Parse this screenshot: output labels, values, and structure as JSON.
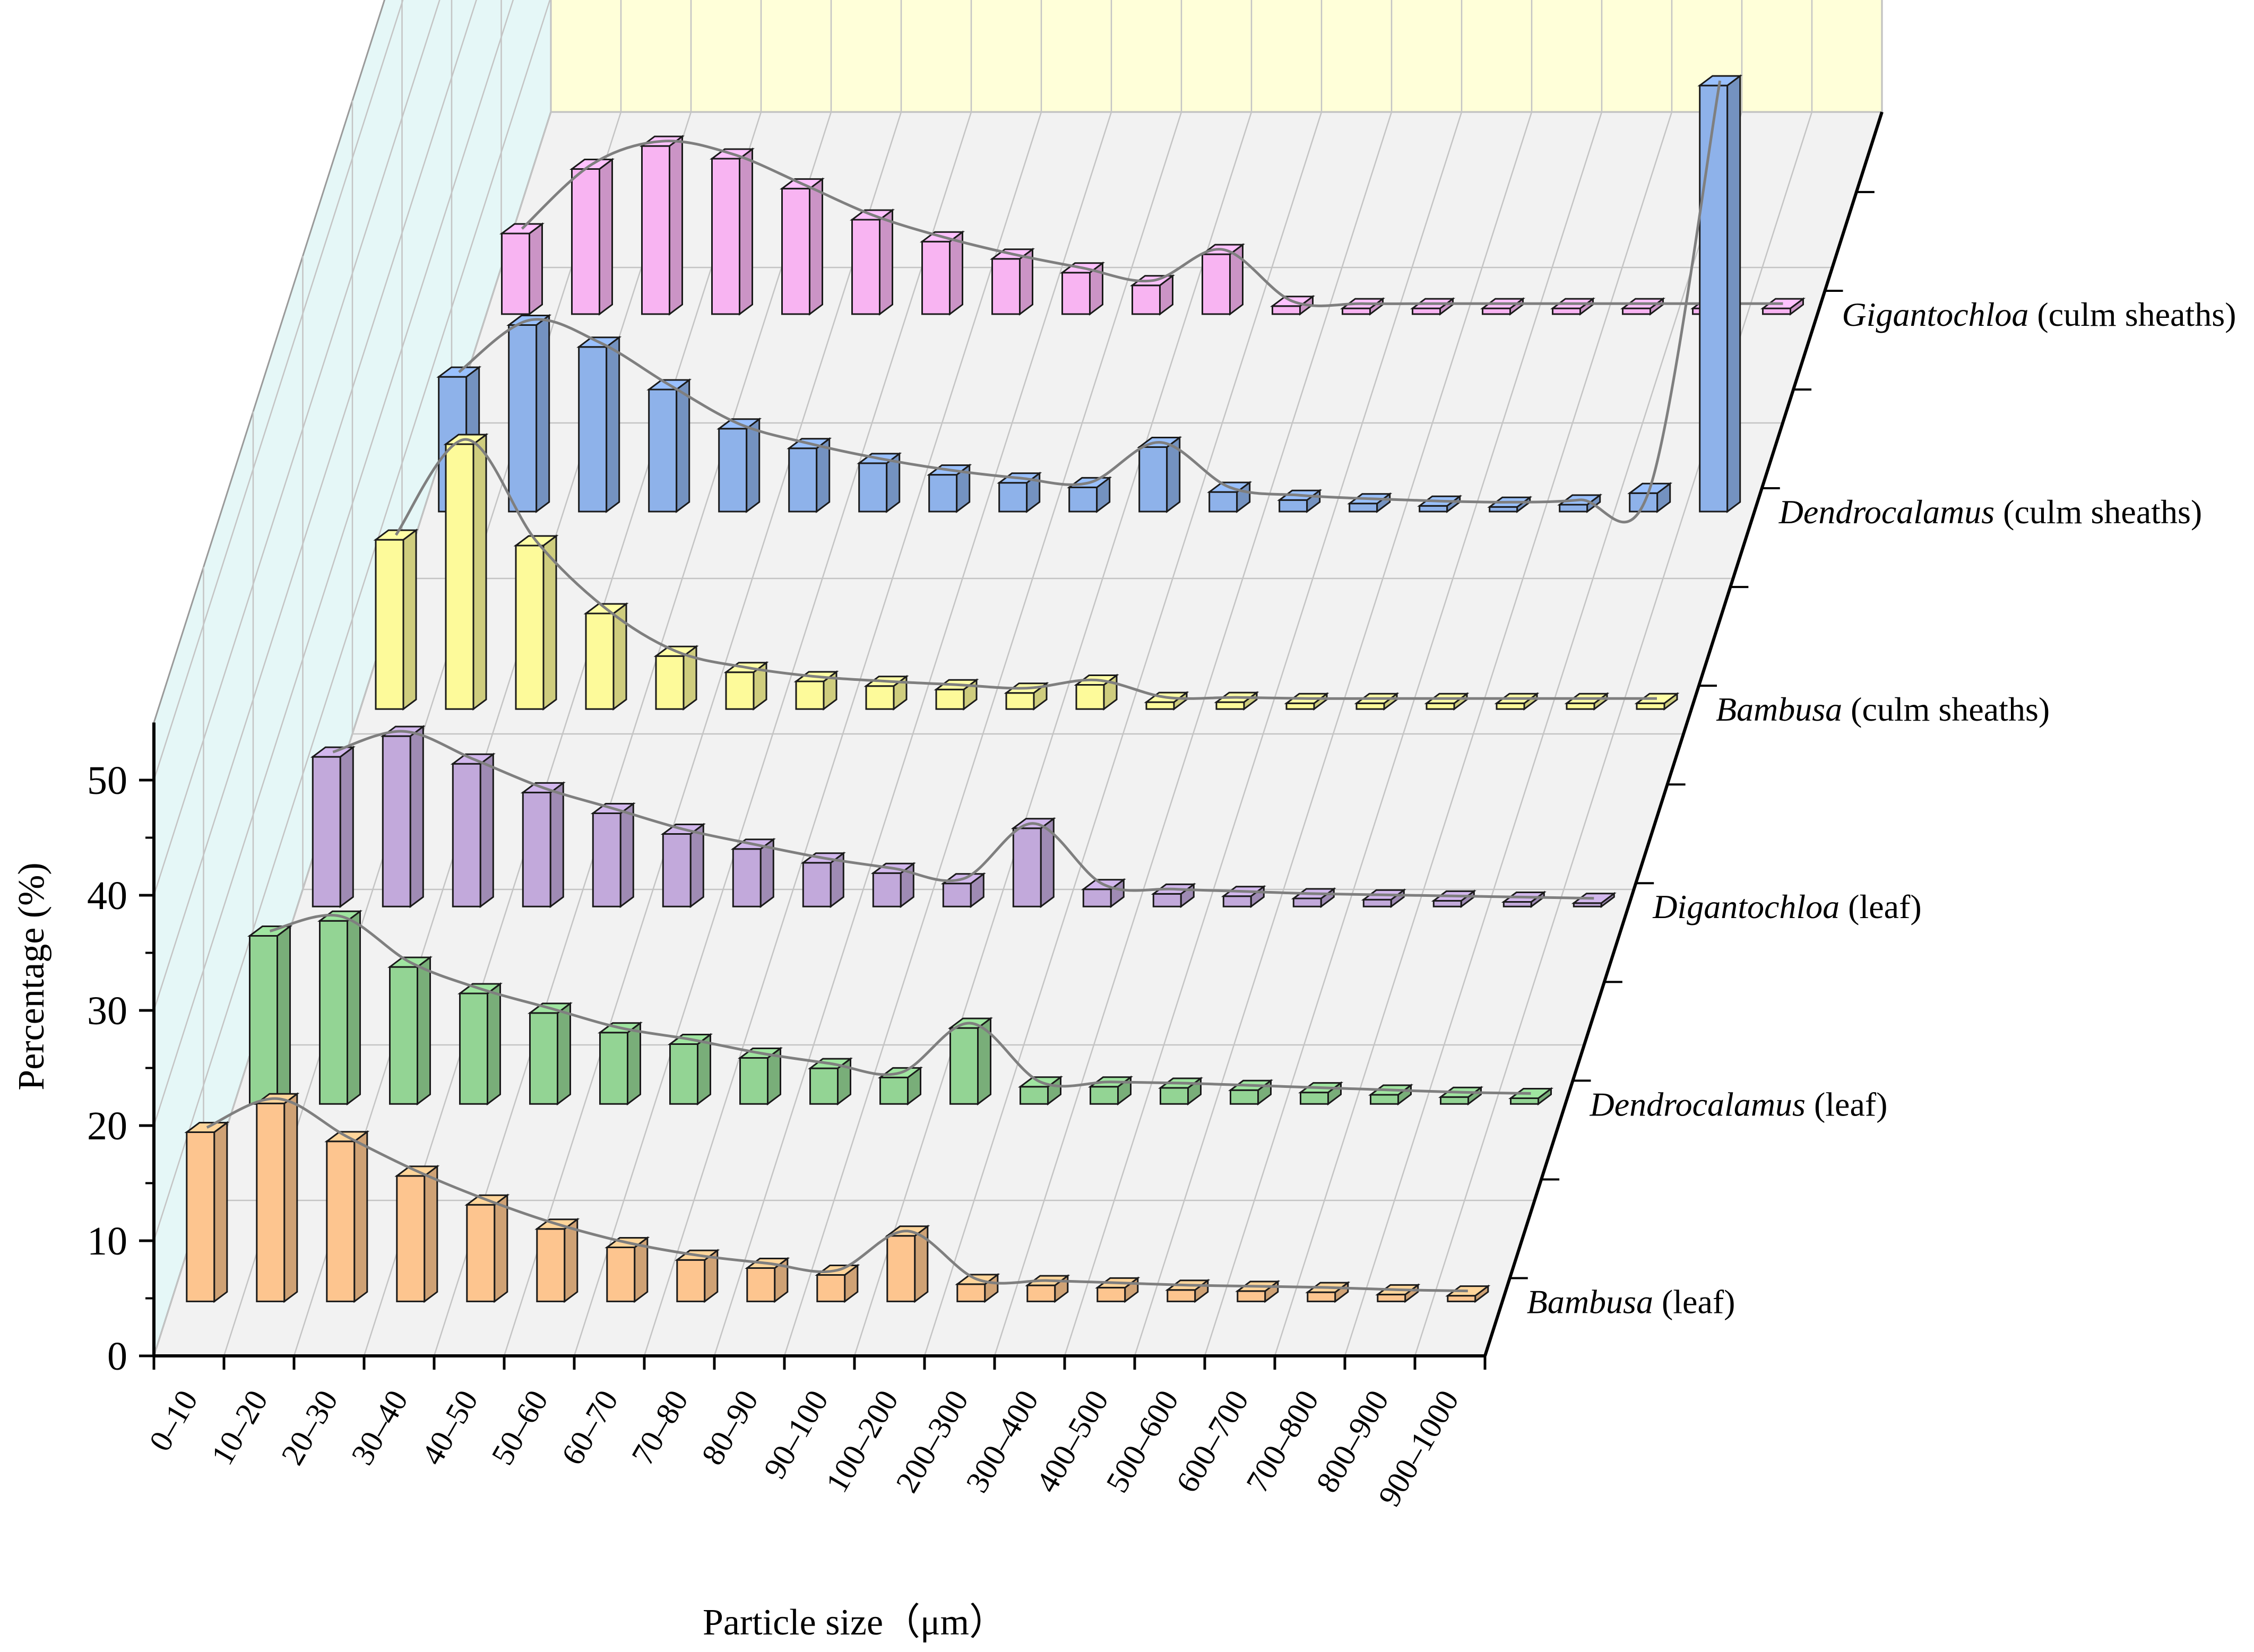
{
  "chart_data": {
    "type": "bar",
    "subtype": "3d-walls-bars-with-smoothed-lines",
    "xlabel": "Particle size（μm）",
    "ylabel": "Percentage (%)",
    "ylim": [
      0,
      55
    ],
    "yticks": [
      0,
      10,
      20,
      30,
      40,
      50
    ],
    "categories": [
      "0–10",
      "10–20",
      "20–30",
      "30–40",
      "40–50",
      "50–60",
      "60–70",
      "70–80",
      "80–90",
      "90–100",
      "100–200",
      "200–300",
      "300–400",
      "400–500",
      "500–600",
      "600–700",
      "700–800",
      "800–900",
      "900–1000"
    ],
    "series": [
      {
        "name": "Bambusa (leaf)",
        "name_italic": "Bambusa",
        "name_rest": " (leaf)",
        "color": "#FDC58F",
        "values": [
          14.7,
          17.2,
          13.9,
          10.9,
          8.4,
          6.3,
          4.7,
          3.6,
          2.9,
          2.3,
          5.7,
          1.5,
          1.4,
          1.2,
          1.0,
          0.9,
          0.8,
          0.6,
          0.5
        ]
      },
      {
        "name": "Dendrocalamus  (leaf)",
        "name_italic": "Dendrocalamus",
        "name_rest": "  (leaf)",
        "color": "#93D494",
        "values": [
          14.6,
          15.9,
          11.9,
          9.6,
          7.9,
          6.2,
          5.2,
          4.0,
          3.1,
          2.3,
          6.6,
          1.5,
          1.5,
          1.4,
          1.2,
          1.0,
          0.8,
          0.6,
          0.5
        ]
      },
      {
        "name": "Digantochloa (leaf)",
        "name_italic": "Digantochloa",
        "name_rest": " (leaf)",
        "color": "#C2A9DB",
        "values": [
          13.0,
          14.8,
          12.4,
          9.9,
          8.1,
          6.3,
          5.0,
          3.8,
          2.9,
          2.0,
          6.8,
          1.5,
          1.1,
          0.9,
          0.7,
          0.6,
          0.5,
          0.4,
          0.3
        ]
      },
      {
        "name": "Bambusa (culm sheaths)",
        "name_italic": "Bambusa",
        "name_rest": " (culm sheaths)",
        "color": "#FDFA9A",
        "values": [
          14.7,
          23.0,
          14.2,
          8.3,
          4.6,
          3.2,
          2.4,
          2.0,
          1.7,
          1.4,
          2.1,
          0.6,
          0.6,
          0.5,
          0.5,
          0.5,
          0.5,
          0.5,
          0.5
        ]
      },
      {
        "name": "Dendrocalamus (culm sheaths)",
        "name_italic": "Dendrocalamus",
        "name_rest": " (culm sheaths)",
        "color": "#8EB2EA",
        "values": [
          11.7,
          16.2,
          14.3,
          10.6,
          7.2,
          5.5,
          4.2,
          3.2,
          2.5,
          2.1,
          5.6,
          1.7,
          1.0,
          0.7,
          0.5,
          0.4,
          0.6,
          1.6,
          37.0
        ]
      },
      {
        "name": "Gigantochloa (culm sheaths)",
        "name_italic": "Gigantochloa",
        "name_rest": " (culm sheaths)",
        "color": "#F8B4F2",
        "values": [
          7.0,
          12.6,
          14.6,
          13.5,
          10.9,
          8.2,
          6.3,
          4.8,
          3.6,
          2.5,
          5.2,
          0.7,
          0.5,
          0.5,
          0.5,
          0.5,
          0.5,
          0.5,
          0.5
        ]
      }
    ]
  }
}
